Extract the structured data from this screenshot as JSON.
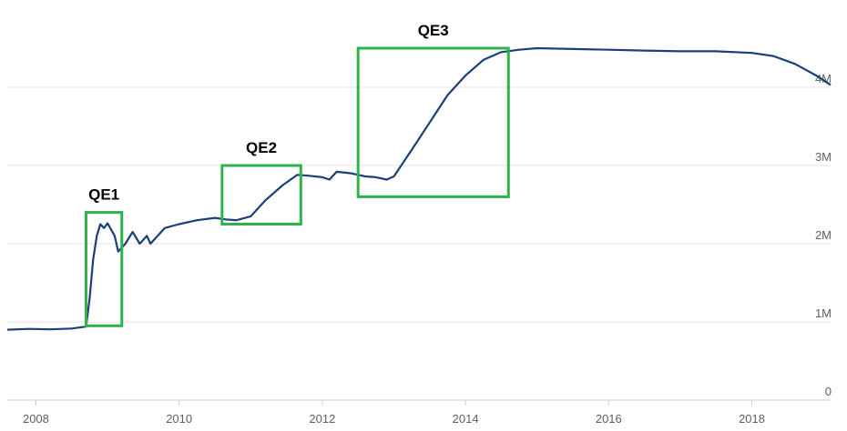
{
  "chart_data": {
    "type": "line",
    "title": "",
    "xlabel": "",
    "ylabel": "",
    "xlim": [
      2007.6,
      2019.1
    ],
    "ylim": [
      0,
      5000000
    ],
    "x_ticks": [
      2008,
      2010,
      2012,
      2014,
      2016,
      2018
    ],
    "x_tick_labels": [
      "2008",
      "2010",
      "2012",
      "2014",
      "2016",
      "2018"
    ],
    "y_ticks": [
      0,
      1000000,
      2000000,
      3000000,
      4000000
    ],
    "y_tick_labels": [
      "0",
      "1M",
      "2M",
      "3M",
      "4M"
    ],
    "grid": true,
    "series": [
      {
        "color": "#1b3f7a",
        "x": [
          2007.6,
          2007.9,
          2008.2,
          2008.5,
          2008.7,
          2008.75,
          2008.8,
          2008.85,
          2008.9,
          2008.95,
          2009.0,
          2009.1,
          2009.15,
          2009.25,
          2009.35,
          2009.45,
          2009.55,
          2009.6,
          2009.7,
          2009.8,
          2010.0,
          2010.25,
          2010.5,
          2010.65,
          2010.8,
          2011.0,
          2011.2,
          2011.45,
          2011.65,
          2011.8,
          2012.0,
          2012.1,
          2012.2,
          2012.4,
          2012.6,
          2012.75,
          2012.9,
          2013.0,
          2013.25,
          2013.5,
          2013.75,
          2014.0,
          2014.25,
          2014.5,
          2014.75,
          2015.0,
          2015.5,
          2016.0,
          2016.5,
          2017.0,
          2017.5,
          2018.0,
          2018.3,
          2018.6,
          2018.9,
          2019.1
        ],
        "y": [
          900000,
          910000,
          905000,
          915000,
          940000,
          1300000,
          1800000,
          2100000,
          2250000,
          2200000,
          2260000,
          2100000,
          1900000,
          2000000,
          2150000,
          2000000,
          2100000,
          2000000,
          2100000,
          2200000,
          2250000,
          2300000,
          2330000,
          2310000,
          2300000,
          2350000,
          2550000,
          2750000,
          2880000,
          2870000,
          2850000,
          2820000,
          2920000,
          2900000,
          2860000,
          2850000,
          2820000,
          2860000,
          3200000,
          3550000,
          3900000,
          4150000,
          4350000,
          4450000,
          4480000,
          4500000,
          4490000,
          4480000,
          4470000,
          4460000,
          4460000,
          4440000,
          4400000,
          4300000,
          4150000,
          4030000
        ]
      }
    ],
    "annotations": [
      {
        "label": "QE1",
        "x_range": [
          2008.7,
          2009.2
        ],
        "y_range": [
          950000,
          2400000
        ]
      },
      {
        "label": "QE2",
        "x_range": [
          2010.6,
          2011.7
        ],
        "y_range": [
          2250000,
          3000000
        ]
      },
      {
        "label": "QE3",
        "x_range": [
          2012.5,
          2014.6
        ],
        "y_range": [
          2600000,
          4500000
        ]
      }
    ]
  }
}
